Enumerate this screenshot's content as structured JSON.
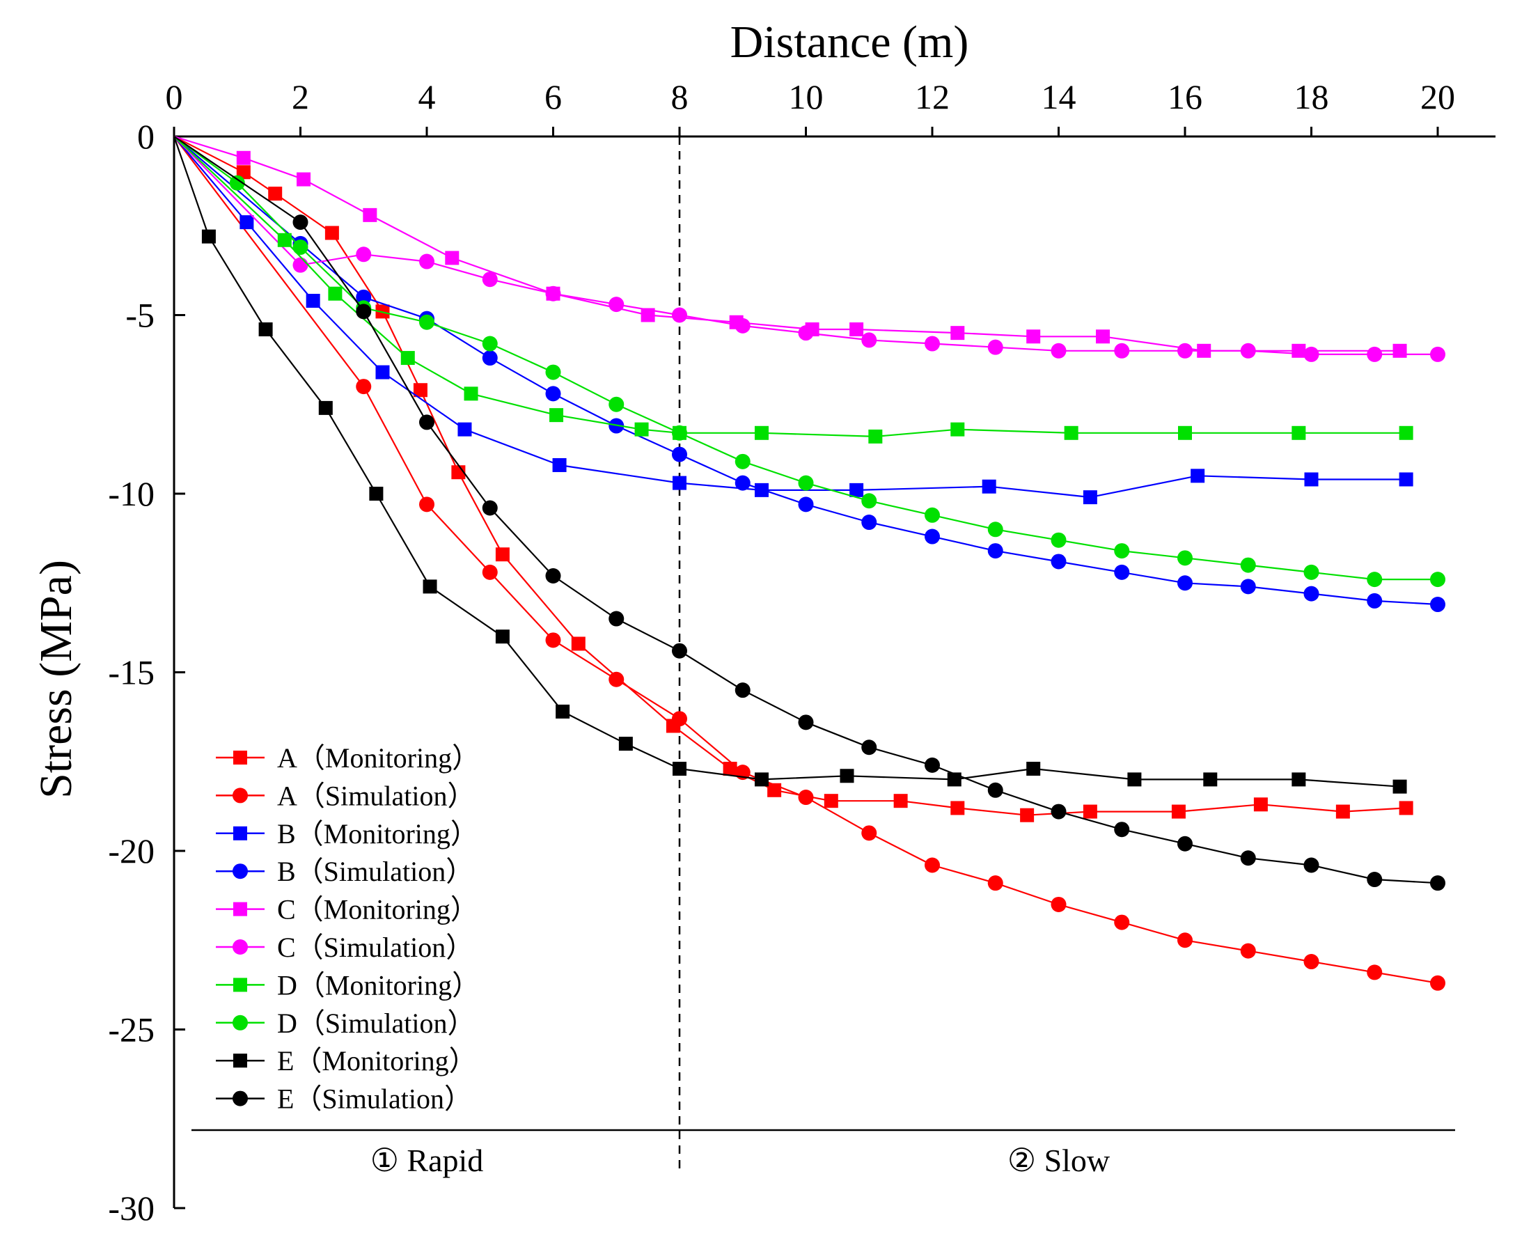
{
  "chart_data": {
    "type": "line",
    "xlabel": "Distance (m)",
    "ylabel": "Stress (MPa)",
    "xlim": [
      0,
      20
    ],
    "ylim": [
      -30,
      0
    ],
    "x_ticks": [
      "0",
      "2",
      "4",
      "6",
      "8",
      "10",
      "12",
      "14",
      "16",
      "18",
      "20"
    ],
    "y_ticks": [
      "0",
      "-5",
      "-10",
      "-15",
      "-20",
      "-25",
      "-30"
    ],
    "divider_x": 8,
    "regions": [
      {
        "label": "① Rapid",
        "x": 4
      },
      {
        "label": "② Slow",
        "x": 14
      }
    ],
    "legend_position": "bottom-left",
    "grid": false,
    "series": [
      {
        "name": "A（Monitoring）",
        "color": "#ff0000",
        "marker": "square",
        "points": [
          [
            0,
            0
          ],
          [
            1.1,
            -1.0
          ],
          [
            1.6,
            -1.6
          ],
          [
            2.5,
            -2.7
          ],
          [
            3.3,
            -4.9
          ],
          [
            3.9,
            -7.1
          ],
          [
            4.5,
            -9.4
          ],
          [
            5.2,
            -11.7
          ],
          [
            6.4,
            -14.2
          ],
          [
            7.9,
            -16.5
          ],
          [
            8.8,
            -17.7
          ],
          [
            9.5,
            -18.3
          ],
          [
            10.4,
            -18.6
          ],
          [
            11.5,
            -18.6
          ],
          [
            12.4,
            -18.8
          ],
          [
            13.5,
            -19.0
          ],
          [
            14.5,
            -18.9
          ],
          [
            15.9,
            -18.9
          ],
          [
            17.2,
            -18.7
          ],
          [
            18.5,
            -18.9
          ],
          [
            19.5,
            -18.8
          ]
        ]
      },
      {
        "name": "A（Simulation）",
        "color": "#ff0000",
        "marker": "circle",
        "points": [
          [
            0,
            0
          ],
          [
            3,
            -7.0
          ],
          [
            4,
            -10.3
          ],
          [
            5,
            -12.2
          ],
          [
            6,
            -14.1
          ],
          [
            7,
            -15.2
          ],
          [
            8,
            -16.3
          ],
          [
            9,
            -17.8
          ],
          [
            10,
            -18.5
          ],
          [
            11,
            -19.5
          ],
          [
            12,
            -20.4
          ],
          [
            13,
            -20.9
          ],
          [
            14,
            -21.5
          ],
          [
            15,
            -22.0
          ],
          [
            16,
            -22.5
          ],
          [
            17,
            -22.8
          ],
          [
            18,
            -23.1
          ],
          [
            19,
            -23.4
          ],
          [
            20,
            -23.7
          ]
        ]
      },
      {
        "name": "B（Monitoring）",
        "color": "#0000ff",
        "marker": "square",
        "points": [
          [
            0,
            0
          ],
          [
            1.15,
            -2.4
          ],
          [
            2.2,
            -4.6
          ],
          [
            3.3,
            -6.6
          ],
          [
            4.6,
            -8.2
          ],
          [
            6.1,
            -9.2
          ],
          [
            8,
            -9.7
          ],
          [
            9.3,
            -9.9
          ],
          [
            10.8,
            -9.9
          ],
          [
            12.9,
            -9.8
          ],
          [
            14.5,
            -10.1
          ],
          [
            16.2,
            -9.5
          ],
          [
            18,
            -9.6
          ],
          [
            19.5,
            -9.6
          ]
        ]
      },
      {
        "name": "B（Simulation）",
        "color": "#0000ff",
        "marker": "circle",
        "points": [
          [
            0,
            0
          ],
          [
            2,
            -3.0
          ],
          [
            3,
            -4.5
          ],
          [
            4,
            -5.1
          ],
          [
            5,
            -6.2
          ],
          [
            6,
            -7.2
          ],
          [
            7,
            -8.1
          ],
          [
            8,
            -8.9
          ],
          [
            9,
            -9.7
          ],
          [
            10,
            -10.3
          ],
          [
            11,
            -10.8
          ],
          [
            12,
            -11.2
          ],
          [
            13,
            -11.6
          ],
          [
            14,
            -11.9
          ],
          [
            15,
            -12.2
          ],
          [
            16,
            -12.5
          ],
          [
            17,
            -12.6
          ],
          [
            18,
            -12.8
          ],
          [
            19,
            -13.0
          ],
          [
            20,
            -13.1
          ]
        ]
      },
      {
        "name": "C（Monitoring）",
        "color": "#ff00ff",
        "marker": "square",
        "points": [
          [
            0,
            0
          ],
          [
            1.1,
            -0.6
          ],
          [
            2.05,
            -1.2
          ],
          [
            3.1,
            -2.2
          ],
          [
            4.4,
            -3.4
          ],
          [
            6,
            -4.4
          ],
          [
            7.5,
            -5.0
          ],
          [
            8.9,
            -5.2
          ],
          [
            10.1,
            -5.4
          ],
          [
            10.8,
            -5.4
          ],
          [
            12.4,
            -5.5
          ],
          [
            13.6,
            -5.6
          ],
          [
            14.7,
            -5.6
          ],
          [
            16.3,
            -6.0
          ],
          [
            17.8,
            -6.0
          ],
          [
            19.4,
            -6.0
          ]
        ]
      },
      {
        "name": "C（Simulation）",
        "color": "#ff00ff",
        "marker": "circle",
        "points": [
          [
            0,
            0
          ],
          [
            2,
            -3.6
          ],
          [
            3,
            -3.3
          ],
          [
            4,
            -3.5
          ],
          [
            5,
            -4.0
          ],
          [
            6,
            -4.4
          ],
          [
            7,
            -4.7
          ],
          [
            8,
            -5.0
          ],
          [
            9,
            -5.3
          ],
          [
            10,
            -5.5
          ],
          [
            11,
            -5.7
          ],
          [
            12,
            -5.8
          ],
          [
            13,
            -5.9
          ],
          [
            14,
            -6.0
          ],
          [
            15,
            -6.0
          ],
          [
            16,
            -6.0
          ],
          [
            17,
            -6.0
          ],
          [
            18,
            -6.1
          ],
          [
            19,
            -6.1
          ],
          [
            20,
            -6.1
          ]
        ]
      },
      {
        "name": "D（Monitoring）",
        "color": "#00e000",
        "marker": "square",
        "points": [
          [
            0,
            0
          ],
          [
            1.75,
            -2.9
          ],
          [
            2.55,
            -4.4
          ],
          [
            3.7,
            -6.2
          ],
          [
            4.7,
            -7.2
          ],
          [
            6.05,
            -7.8
          ],
          [
            7.4,
            -8.2
          ],
          [
            8,
            -8.3
          ],
          [
            9.3,
            -8.3
          ],
          [
            11.1,
            -8.4
          ],
          [
            12.4,
            -8.2
          ],
          [
            14.2,
            -8.3
          ],
          [
            16,
            -8.3
          ],
          [
            17.8,
            -8.3
          ],
          [
            19.5,
            -8.3
          ]
        ]
      },
      {
        "name": "D（Simulation）",
        "color": "#00e000",
        "marker": "circle",
        "points": [
          [
            0,
            0
          ],
          [
            1,
            -1.3
          ],
          [
            2,
            -3.1
          ],
          [
            3,
            -4.8
          ],
          [
            4,
            -5.2
          ],
          [
            5,
            -5.8
          ],
          [
            6,
            -6.6
          ],
          [
            7,
            -7.5
          ],
          [
            8,
            -8.3
          ],
          [
            9,
            -9.1
          ],
          [
            10,
            -9.7
          ],
          [
            11,
            -10.2
          ],
          [
            12,
            -10.6
          ],
          [
            13,
            -11.0
          ],
          [
            14,
            -11.3
          ],
          [
            15,
            -11.6
          ],
          [
            16,
            -11.8
          ],
          [
            17,
            -12.0
          ],
          [
            18,
            -12.2
          ],
          [
            19,
            -12.4
          ],
          [
            20,
            -12.4
          ]
        ]
      },
      {
        "name": "E（Monitoring）",
        "color": "#000000",
        "marker": "square",
        "points": [
          [
            0,
            0
          ],
          [
            0.55,
            -2.8
          ],
          [
            1.45,
            -5.4
          ],
          [
            2.4,
            -7.6
          ],
          [
            3.2,
            -10.0
          ],
          [
            4.05,
            -12.6
          ],
          [
            5.2,
            -14.0
          ],
          [
            6.15,
            -16.1
          ],
          [
            7.15,
            -17.0
          ],
          [
            8,
            -17.7
          ],
          [
            9.3,
            -18.0
          ],
          [
            10.65,
            -17.9
          ],
          [
            12.35,
            -18.0
          ],
          [
            13.6,
            -17.7
          ],
          [
            15.2,
            -18.0
          ],
          [
            16.4,
            -18.0
          ],
          [
            17.8,
            -18.0
          ],
          [
            19.4,
            -18.2
          ]
        ]
      },
      {
        "name": "E（Simulation）",
        "color": "#000000",
        "marker": "circle",
        "points": [
          [
            0,
            0
          ],
          [
            2,
            -2.4
          ],
          [
            3,
            -4.9
          ],
          [
            4,
            -8.0
          ],
          [
            5,
            -10.4
          ],
          [
            6,
            -12.3
          ],
          [
            7,
            -13.5
          ],
          [
            8,
            -14.4
          ],
          [
            9,
            -15.5
          ],
          [
            10,
            -16.4
          ],
          [
            11,
            -17.1
          ],
          [
            12,
            -17.6
          ],
          [
            13,
            -18.3
          ],
          [
            14,
            -18.9
          ],
          [
            15,
            -19.4
          ],
          [
            16,
            -19.8
          ],
          [
            17,
            -20.2
          ],
          [
            18,
            -20.4
          ],
          [
            19,
            -20.8
          ],
          [
            20,
            -20.9
          ]
        ]
      }
    ]
  }
}
